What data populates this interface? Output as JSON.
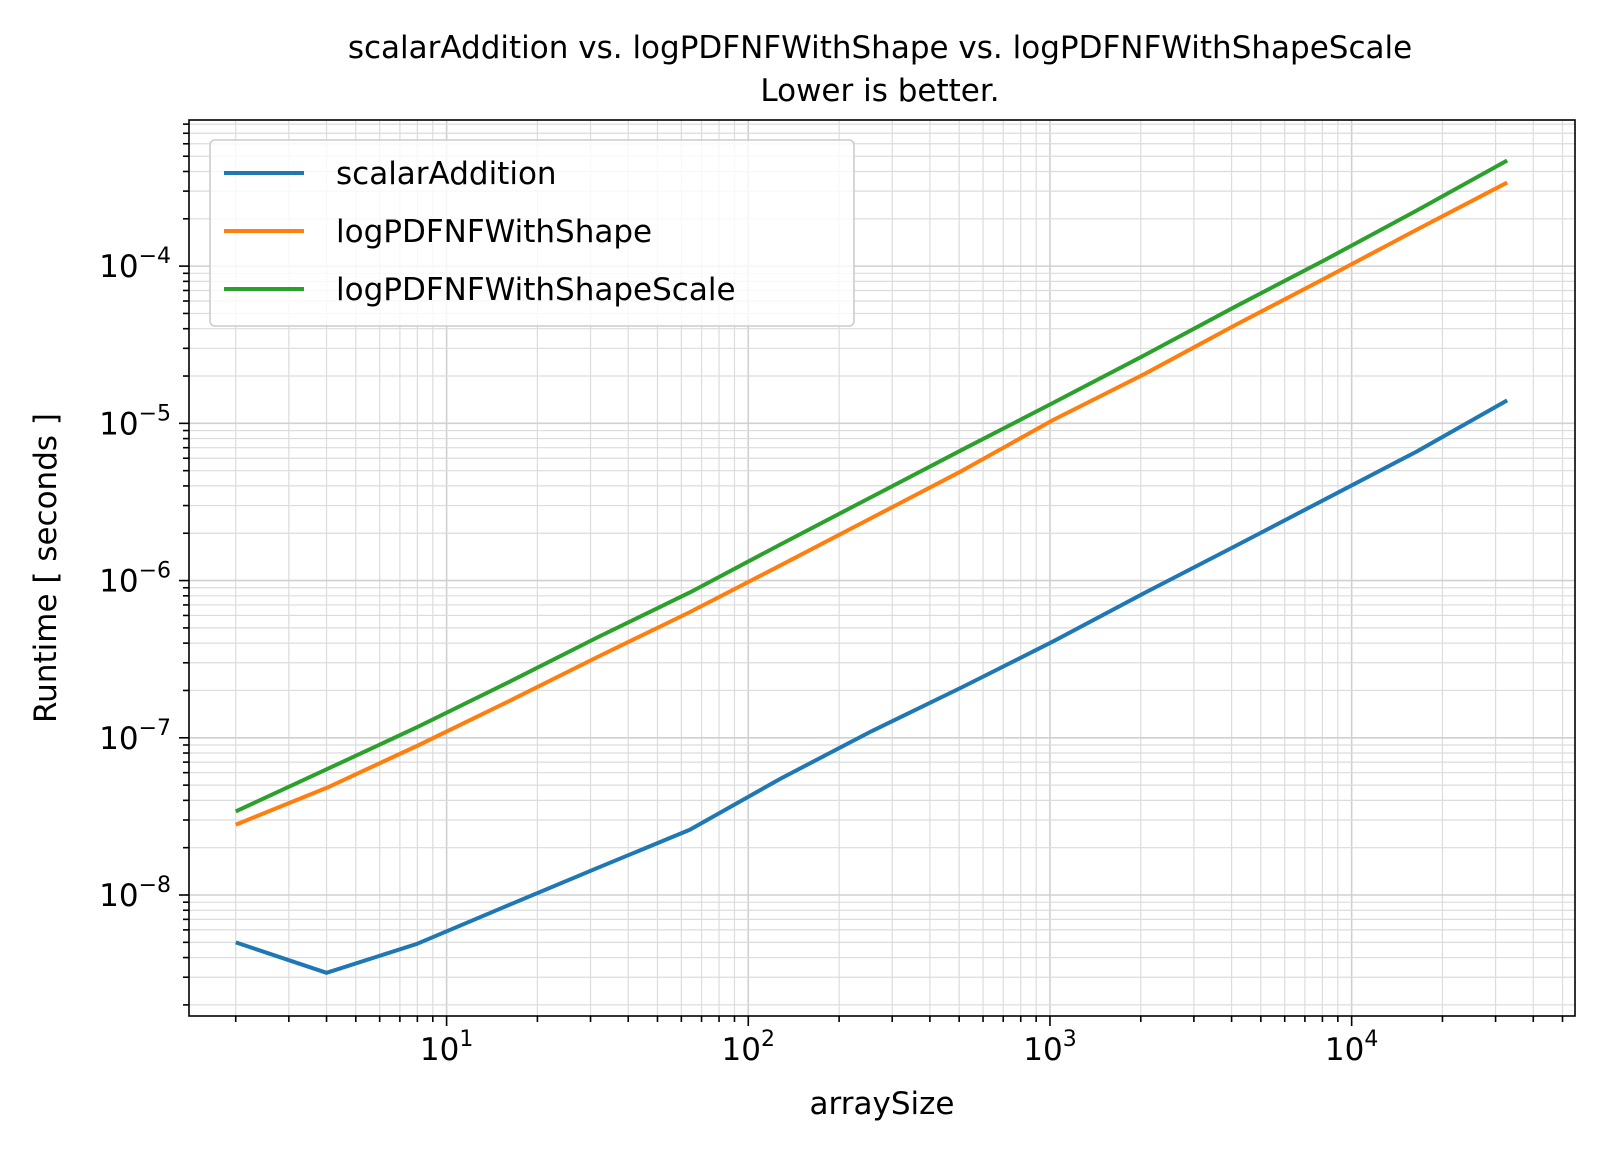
{
  "chart_data": {
    "type": "line",
    "title": "scalarAddition vs. logPDFNFWithShape vs. logPDFNFWithShapeScale",
    "subtitle": "Lower is better.",
    "xlabel": "arraySize",
    "ylabel": "Runtime [ seconds ]",
    "xscale": "log",
    "yscale": "log",
    "xlim": [
      1.4,
      55000
    ],
    "ylim": [
      1.7e-09,
      0.00085
    ],
    "xticks": [
      {
        "base": "10",
        "exp": "1",
        "value": 10
      },
      {
        "base": "10",
        "exp": "2",
        "value": 100
      },
      {
        "base": "10",
        "exp": "3",
        "value": 1000
      },
      {
        "base": "10",
        "exp": "4",
        "value": 10000
      }
    ],
    "yticks": [
      {
        "base": "10",
        "exp": "−8",
        "value": 1e-08
      },
      {
        "base": "10",
        "exp": "−7",
        "value": 1e-07
      },
      {
        "base": "10",
        "exp": "−6",
        "value": 1e-06
      },
      {
        "base": "10",
        "exp": "−5",
        "value": 1e-05
      },
      {
        "base": "10",
        "exp": "−4",
        "value": 0.0001
      }
    ],
    "grid": true,
    "legend_position": "upper-left",
    "x": [
      2,
      4,
      8,
      16,
      32,
      64,
      128,
      256,
      512,
      1024,
      2048,
      4096,
      8192,
      16384,
      32768
    ],
    "series": [
      {
        "name": "scalarAddition",
        "color": "#1f77b4",
        "values": [
          5e-09,
          3.2e-09,
          4.9e-09,
          8.6e-09,
          1.5e-08,
          2.6e-08,
          5.5e-08,
          1.1e-07,
          2.1e-07,
          4.1e-07,
          8.3e-07,
          1.65e-06,
          3.3e-06,
          6.6e-06,
          1.4e-05
        ]
      },
      {
        "name": "logPDFNFWithShape",
        "color": "#ff7f0e",
        "values": [
          2.8e-08,
          4.8e-08,
          8.9e-08,
          1.7e-07,
          3.3e-07,
          6.3e-07,
          1.25e-06,
          2.5e-06,
          5e-06,
          1.05e-05,
          2.05e-05,
          4.2e-05,
          8.4e-05,
          0.00017,
          0.00034
        ]
      },
      {
        "name": "logPDFNFWithShapeScale",
        "color": "#2ca02c",
        "values": [
          3.4e-08,
          6.3e-08,
          1.17e-07,
          2.25e-07,
          4.4e-07,
          8.4e-07,
          1.7e-06,
          3.4e-06,
          6.8e-06,
          1.35e-05,
          2.7e-05,
          5.5e-05,
          0.00011,
          0.000225,
          0.00047
        ]
      }
    ]
  }
}
